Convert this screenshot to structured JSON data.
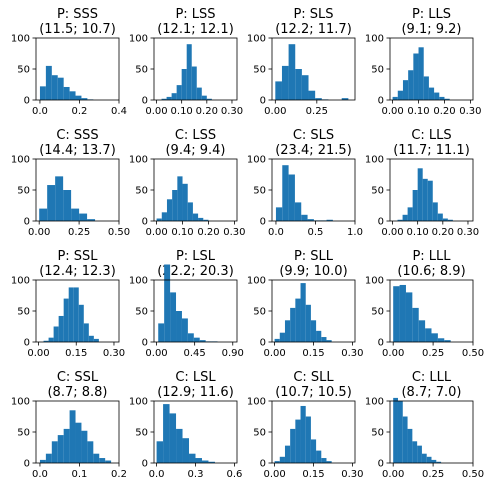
{
  "chart_data": [
    {
      "type": "bar",
      "title_line1": "P: SSS",
      "title_line2": "(11.5; 10.7)",
      "xlim": [
        -0.02,
        0.4
      ],
      "ylim": [
        0,
        100
      ],
      "xticks": [
        0.0,
        0.2,
        0.4
      ],
      "xtick_labels": [
        "0.0",
        "0.2",
        "0.4"
      ],
      "yticks": [
        0,
        50,
        100
      ],
      "ytick_labels": [
        "0",
        "50",
        "100"
      ],
      "bin_edges": [
        0.0,
        0.03,
        0.06,
        0.09,
        0.12,
        0.15,
        0.18,
        0.21,
        0.24,
        0.27
      ],
      "values": [
        22,
        55,
        40,
        36,
        21,
        14,
        7,
        3,
        1
      ]
    },
    {
      "type": "bar",
      "title_line1": "P: LSS",
      "title_line2": "(12.1; 12.1)",
      "xlim": [
        -0.01,
        0.32
      ],
      "ylim": [
        0,
        100
      ],
      "xticks": [
        0.0,
        0.1,
        0.2,
        0.3
      ],
      "xtick_labels": [
        "0.00",
        "0.10",
        "0.20",
        "0.30"
      ],
      "yticks": [
        0,
        50,
        100
      ],
      "ytick_labels": [
        "0",
        "50",
        "100"
      ],
      "bin_edges": [
        0.02,
        0.04,
        0.06,
        0.08,
        0.1,
        0.12,
        0.14,
        0.16,
        0.18,
        0.2,
        0.22
      ],
      "values": [
        2,
        5,
        11,
        24,
        50,
        90,
        54,
        20,
        7,
        2
      ]
    },
    {
      "type": "bar",
      "title_line1": "P: SLS",
      "title_line2": "(12.2; 11.7)",
      "xlim": [
        -0.02,
        0.48
      ],
      "ylim": [
        0,
        100
      ],
      "xticks": [
        0.0,
        0.25
      ],
      "xtick_labels": [
        "0.00",
        "0.25"
      ],
      "yticks": [
        0,
        50,
        100
      ],
      "ytick_labels": [
        "0",
        "50",
        "100"
      ],
      "bin_edges": [
        0.0,
        0.04,
        0.08,
        0.12,
        0.16,
        0.2,
        0.24,
        0.28,
        0.32,
        0.36,
        0.4,
        0.44
      ],
      "values": [
        30,
        55,
        90,
        50,
        40,
        15,
        3,
        1,
        0,
        0,
        3
      ]
    },
    {
      "type": "bar",
      "title_line1": "P: LLS",
      "title_line2": "(9.1; 9.2)",
      "xlim": [
        -0.01,
        0.31
      ],
      "ylim": [
        0,
        100
      ],
      "xticks": [
        0.0,
        0.1,
        0.2,
        0.3
      ],
      "xtick_labels": [
        "0.00",
        "0.10",
        "0.20",
        "0.30"
      ],
      "yticks": [
        0,
        50,
        100
      ],
      "ytick_labels": [
        "0",
        "50",
        "100"
      ],
      "bin_edges": [
        0.0,
        0.02,
        0.04,
        0.06,
        0.08,
        0.1,
        0.12,
        0.14,
        0.16,
        0.18,
        0.2,
        0.22
      ],
      "values": [
        5,
        15,
        32,
        48,
        75,
        85,
        38,
        20,
        12,
        5,
        2
      ]
    },
    {
      "type": "bar",
      "title_line1": "C: SSS",
      "title_line2": "(14.4; 13.7)",
      "xlim": [
        -0.02,
        0.5
      ],
      "ylim": [
        0,
        100
      ],
      "xticks": [
        0.0,
        0.25,
        0.5
      ],
      "xtick_labels": [
        "0.00",
        "0.25",
        "0.50"
      ],
      "yticks": [
        0,
        50,
        100
      ],
      "ytick_labels": [
        "0",
        "50",
        "100"
      ],
      "bin_edges": [
        0.0,
        0.05,
        0.1,
        0.15,
        0.2,
        0.25,
        0.3,
        0.35
      ],
      "values": [
        20,
        58,
        72,
        50,
        20,
        12,
        3
      ]
    },
    {
      "type": "bar",
      "title_line1": "C: LSS",
      "title_line2": "(9.4; 9.4)",
      "xlim": [
        -0.01,
        0.31
      ],
      "ylim": [
        0,
        100
      ],
      "xticks": [
        0.0,
        0.1,
        0.2,
        0.3
      ],
      "xtick_labels": [
        "0.00",
        "0.10",
        "0.20",
        "0.30"
      ],
      "yticks": [
        0,
        50,
        100
      ],
      "ytick_labels": [
        "0",
        "50",
        "100"
      ],
      "bin_edges": [
        0.0,
        0.02,
        0.04,
        0.06,
        0.08,
        0.1,
        0.12,
        0.14,
        0.16,
        0.18,
        0.2
      ],
      "values": [
        4,
        14,
        35,
        50,
        72,
        60,
        30,
        12,
        5,
        2
      ]
    },
    {
      "type": "bar",
      "title_line1": "C: SLS",
      "title_line2": "(23.4; 21.5)",
      "xlim": [
        -0.05,
        1.0
      ],
      "ylim": [
        0,
        100
      ],
      "xticks": [
        0.0,
        0.5,
        1.0
      ],
      "xtick_labels": [
        "0.0",
        "0.5",
        "1.0"
      ],
      "yticks": [
        0,
        50,
        100
      ],
      "ytick_labels": [
        "0",
        "50",
        "100"
      ],
      "bin_edges": [
        0.0,
        0.08,
        0.16,
        0.24,
        0.32,
        0.4,
        0.48,
        0.56,
        0.64,
        0.72
      ],
      "values": [
        22,
        90,
        75,
        30,
        10,
        3,
        1,
        1,
        2
      ]
    },
    {
      "type": "bar",
      "title_line1": "C: LLS",
      "title_line2": "(11.7; 11.1)",
      "xlim": [
        -0.01,
        0.32
      ],
      "ylim": [
        0,
        100
      ],
      "xticks": [
        0.0,
        0.1,
        0.2,
        0.3
      ],
      "xtick_labels": [
        "0.00",
        "0.10",
        "0.20",
        "0.30"
      ],
      "yticks": [
        0,
        50,
        100
      ],
      "ytick_labels": [
        "0",
        "50",
        "100"
      ],
      "bin_edges": [
        0.02,
        0.04,
        0.06,
        0.08,
        0.1,
        0.12,
        0.14,
        0.16,
        0.18,
        0.2,
        0.22,
        0.24
      ],
      "values": [
        2,
        10,
        22,
        50,
        85,
        68,
        65,
        30,
        12,
        4,
        2
      ]
    },
    {
      "type": "bar",
      "title_line1": "P: SSL",
      "title_line2": "(12.4; 12.3)",
      "xlim": [
        -0.01,
        0.32
      ],
      "ylim": [
        0,
        100
      ],
      "xticks": [
        0.0,
        0.15,
        0.3
      ],
      "xtick_labels": [
        "0.00",
        "0.15",
        "0.30"
      ],
      "yticks": [
        0,
        50,
        100
      ],
      "ytick_labels": [
        "0",
        "50",
        "100"
      ],
      "bin_edges": [
        0.02,
        0.04,
        0.06,
        0.08,
        0.1,
        0.12,
        0.14,
        0.16,
        0.18,
        0.2,
        0.22,
        0.24
      ],
      "values": [
        2,
        7,
        25,
        42,
        70,
        88,
        88,
        60,
        30,
        10,
        5
      ]
    },
    {
      "type": "bar",
      "title_line1": "P: LSL",
      "title_line2": "(22.2; 20.3)",
      "xlim": [
        -0.03,
        0.95
      ],
      "ylim": [
        0,
        100
      ],
      "xticks": [
        0.0,
        0.45,
        0.9
      ],
      "xtick_labels": [
        "0.00",
        "0.45",
        "0.90"
      ],
      "yticks": [
        0,
        50,
        100
      ],
      "ytick_labels": [
        "0",
        "50",
        "100"
      ],
      "bin_edges": [
        0.02,
        0.09,
        0.16,
        0.23,
        0.3,
        0.37,
        0.44,
        0.51,
        0.58,
        0.65,
        0.72
      ],
      "values": [
        30,
        125,
        80,
        50,
        38,
        14,
        7,
        3,
        1,
        1
      ]
    },
    {
      "type": "bar",
      "title_line1": "P: SLL",
      "title_line2": "(9.9; 10.0)",
      "xlim": [
        -0.01,
        0.31
      ],
      "ylim": [
        0,
        100
      ],
      "xticks": [
        0.0,
        0.15,
        0.3
      ],
      "xtick_labels": [
        "0.00",
        "0.15",
        "0.30"
      ],
      "yticks": [
        0,
        50,
        100
      ],
      "ytick_labels": [
        "0",
        "50",
        "100"
      ],
      "bin_edges": [
        0.0,
        0.02,
        0.04,
        0.06,
        0.08,
        0.1,
        0.12,
        0.14,
        0.16,
        0.18,
        0.2,
        0.22
      ],
      "values": [
        5,
        15,
        35,
        55,
        70,
        95,
        60,
        35,
        18,
        8,
        3
      ]
    },
    {
      "type": "bar",
      "title_line1": "P: LLL",
      "title_line2": "(10.6; 8.9)",
      "xlim": [
        -0.02,
        0.5
      ],
      "ylim": [
        0,
        100
      ],
      "xticks": [
        0.0,
        0.25,
        0.5
      ],
      "xtick_labels": [
        "0.00",
        "0.25",
        "0.50"
      ],
      "yticks": [
        0,
        50,
        100
      ],
      "ytick_labels": [
        "0",
        "50",
        "100"
      ],
      "bin_edges": [
        0.0,
        0.04,
        0.08,
        0.12,
        0.16,
        0.2,
        0.24,
        0.28,
        0.32,
        0.36
      ],
      "values": [
        90,
        92,
        80,
        55,
        35,
        22,
        14,
        6,
        3
      ]
    },
    {
      "type": "bar",
      "title_line1": "C: SSL",
      "title_line2": "(8.7; 8.8)",
      "xlim": [
        -0.01,
        0.2
      ],
      "ylim": [
        0,
        100
      ],
      "xticks": [
        0.0,
        0.1,
        0.2
      ],
      "xtick_labels": [
        "0.0",
        "0.1",
        "0.2"
      ],
      "yticks": [
        0,
        50,
        100
      ],
      "ytick_labels": [
        "0",
        "50",
        "100"
      ],
      "bin_edges": [
        0.0,
        0.015,
        0.03,
        0.045,
        0.06,
        0.075,
        0.09,
        0.105,
        0.12,
        0.135,
        0.15,
        0.165,
        0.18
      ],
      "values": [
        5,
        15,
        35,
        45,
        55,
        85,
        65,
        52,
        35,
        15,
        8,
        4
      ]
    },
    {
      "type": "bar",
      "title_line1": "C: LSL",
      "title_line2": "(12.9; 11.6)",
      "xlim": [
        -0.02,
        0.62
      ],
      "ylim": [
        0,
        100
      ],
      "xticks": [
        0.0,
        0.3,
        0.6
      ],
      "xtick_labels": [
        "0.0",
        "0.3",
        "0.6"
      ],
      "yticks": [
        0,
        50,
        100
      ],
      "ytick_labels": [
        "0",
        "50",
        "100"
      ],
      "bin_edges": [
        0.0,
        0.05,
        0.1,
        0.15,
        0.2,
        0.25,
        0.3,
        0.35,
        0.4,
        0.45
      ],
      "values": [
        35,
        95,
        80,
        55,
        40,
        15,
        8,
        4,
        2
      ]
    },
    {
      "type": "bar",
      "title_line1": "C: SLL",
      "title_line2": "(10.7; 10.5)",
      "xlim": [
        -0.01,
        0.31
      ],
      "ylim": [
        0,
        100
      ],
      "xticks": [
        0.0,
        0.15,
        0.3
      ],
      "xtick_labels": [
        "0.00",
        "0.15",
        "0.30"
      ],
      "yticks": [
        0,
        50,
        100
      ],
      "ytick_labels": [
        "0",
        "50",
        "100"
      ],
      "bin_edges": [
        0.0,
        0.02,
        0.04,
        0.06,
        0.08,
        0.1,
        0.12,
        0.14,
        0.16,
        0.18,
        0.2,
        0.22
      ],
      "values": [
        3,
        10,
        28,
        55,
        70,
        92,
        75,
        38,
        20,
        8,
        3
      ]
    },
    {
      "type": "bar",
      "title_line1": "C: LLL",
      "title_line2": "(8.7; 7.0)",
      "xlim": [
        -0.02,
        0.5
      ],
      "ylim": [
        0,
        100
      ],
      "xticks": [
        0.0,
        0.25,
        0.5
      ],
      "xtick_labels": [
        "0.00",
        "0.25",
        "0.50"
      ],
      "yticks": [
        0,
        50,
        100
      ],
      "ytick_labels": [
        "0",
        "50",
        "100"
      ],
      "bin_edges": [
        0.0,
        0.03,
        0.06,
        0.09,
        0.12,
        0.15,
        0.18,
        0.21,
        0.24,
        0.27,
        0.3
      ],
      "values": [
        105,
        100,
        75,
        55,
        35,
        28,
        15,
        10,
        5,
        2
      ]
    }
  ],
  "colors": {
    "bar": "#1f77b4",
    "axis": "#000000"
  }
}
